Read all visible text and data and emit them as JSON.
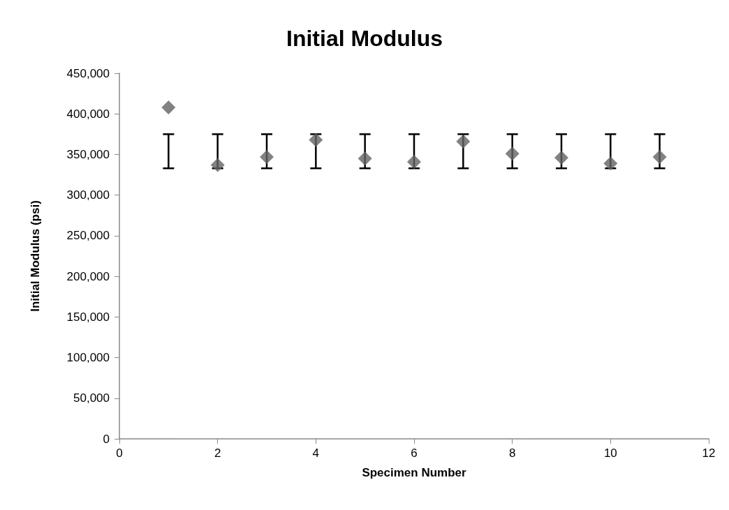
{
  "chart_data": {
    "type": "scatter",
    "title": "Initial Modulus",
    "xlabel": "Specimen Number",
    "ylabel": "Initial Modulus (psi)",
    "x": [
      1,
      2,
      3,
      4,
      5,
      6,
      7,
      8,
      9,
      10,
      11
    ],
    "values": [
      408000,
      337000,
      347000,
      368000,
      345000,
      341000,
      366000,
      351000,
      346000,
      339000,
      347000
    ],
    "errors": [
      [
        333000,
        375000
      ],
      [
        333000,
        375000
      ],
      [
        333000,
        375000
      ],
      [
        333000,
        375000
      ],
      [
        333000,
        375000
      ],
      [
        333000,
        375000
      ],
      [
        333000,
        375000
      ],
      [
        333000,
        375000
      ],
      [
        333000,
        375000
      ],
      [
        333000,
        375000
      ],
      [
        333000,
        375000
      ]
    ],
    "color": "#636363",
    "marker": "diamond",
    "xlim": [
      0,
      12
    ],
    "xticks": [
      0,
      2,
      4,
      6,
      8,
      10,
      12
    ],
    "ylim": [
      0,
      450000
    ],
    "yticks": [
      0,
      {
        "value": 50000,
        "label": "50,000"
      },
      {
        "value": 100000,
        "label": "100,000"
      },
      {
        "value": 150000,
        "label": "150,000"
      },
      {
        "value": 200000,
        "label": "200,000"
      },
      {
        "value": 250000,
        "label": "250,000"
      },
      {
        "value": 300000,
        "label": "300,000"
      },
      {
        "value": 350000,
        "label": "350,000"
      },
      {
        "value": 400000,
        "label": "400,000"
      },
      {
        "value": 450000,
        "label": "450,000"
      }
    ],
    "grid": false
  }
}
